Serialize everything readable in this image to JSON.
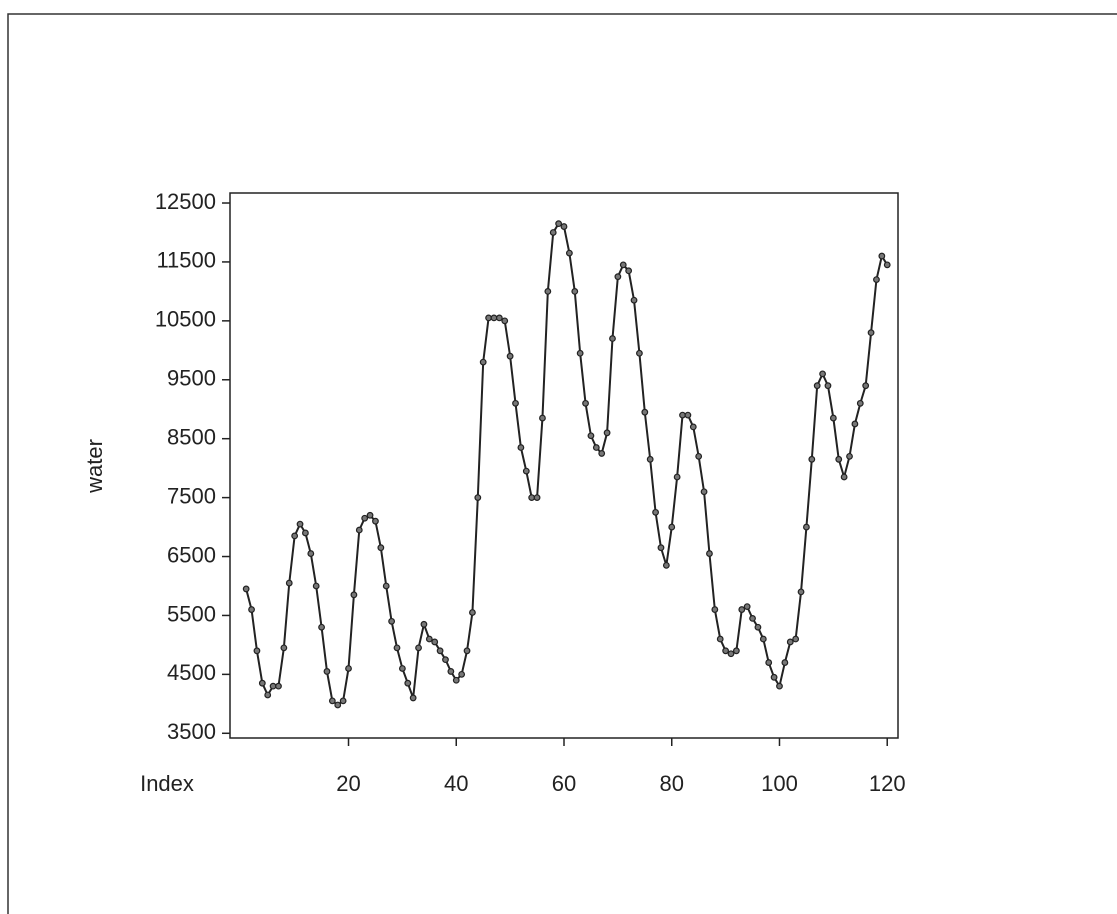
{
  "chart_data": {
    "type": "line",
    "xlabel": "Index",
    "ylabel": "water",
    "x": [
      1,
      2,
      3,
      4,
      5,
      6,
      7,
      8,
      9,
      10,
      11,
      12,
      13,
      14,
      15,
      16,
      17,
      18,
      19,
      20,
      21,
      22,
      23,
      24,
      25,
      26,
      27,
      28,
      29,
      30,
      31,
      32,
      33,
      34,
      35,
      36,
      37,
      38,
      39,
      40,
      41,
      42,
      43,
      44,
      45,
      46,
      47,
      48,
      49,
      50,
      51,
      52,
      53,
      54,
      55,
      56,
      57,
      58,
      59,
      60,
      61,
      62,
      63,
      64,
      65,
      66,
      67,
      68,
      69,
      70,
      71,
      72,
      73,
      74,
      75,
      76,
      77,
      78,
      79,
      80,
      81,
      82,
      83,
      84,
      85,
      86,
      87,
      88,
      89,
      90,
      91,
      92,
      93,
      94,
      95,
      96,
      97,
      98,
      99,
      100,
      101,
      102,
      103,
      104,
      105,
      106,
      107,
      108,
      109,
      110,
      111,
      112,
      113,
      114,
      115,
      116,
      117,
      118,
      119,
      120
    ],
    "series": [
      {
        "color": "#222222",
        "values": [
          5950,
          5600,
          4900,
          4350,
          4150,
          4300,
          4300,
          4950,
          6050,
          6850,
          7050,
          6900,
          6550,
          6000,
          5300,
          4550,
          4050,
          3980,
          4050,
          4600,
          5850,
          6950,
          7150,
          7200,
          7100,
          6650,
          6000,
          5400,
          4950,
          4600,
          4350,
          4100,
          4950,
          5350,
          5100,
          5050,
          4900,
          4750,
          4550,
          4400,
          4500,
          4900,
          5550,
          7500,
          9800,
          10550,
          10550,
          10550,
          10500,
          9900,
          9100,
          8350,
          7950,
          7500,
          7500,
          8850,
          11000,
          12000,
          12150,
          12100,
          11650,
          11000,
          9950,
          9100,
          8550,
          8350,
          8250,
          8600,
          10200,
          11250,
          11450,
          11350,
          10850,
          9950,
          8950,
          8150,
          7250,
          6650,
          6350,
          7000,
          7850,
          8900,
          8900,
          8700,
          8200,
          7600,
          6550,
          5600,
          5100,
          4900,
          4850,
          4900,
          5600,
          5650,
          5450,
          5300,
          5100,
          4700,
          4450,
          4300,
          4700,
          5050,
          5100,
          5900,
          7000,
          8150,
          9400,
          9600,
          9400,
          8850,
          8150,
          7850,
          8200,
          8750,
          9100,
          9400,
          10300,
          11200,
          11600,
          11450
        ]
      }
    ],
    "xlim": [
      -2,
      122
    ],
    "ylim": [
      3420,
      12670
    ],
    "xticks": [
      20,
      40,
      60,
      80,
      100,
      120
    ],
    "yticks": [
      3500,
      4500,
      5500,
      6500,
      7500,
      8500,
      9500,
      10500,
      11500,
      12500
    ]
  }
}
